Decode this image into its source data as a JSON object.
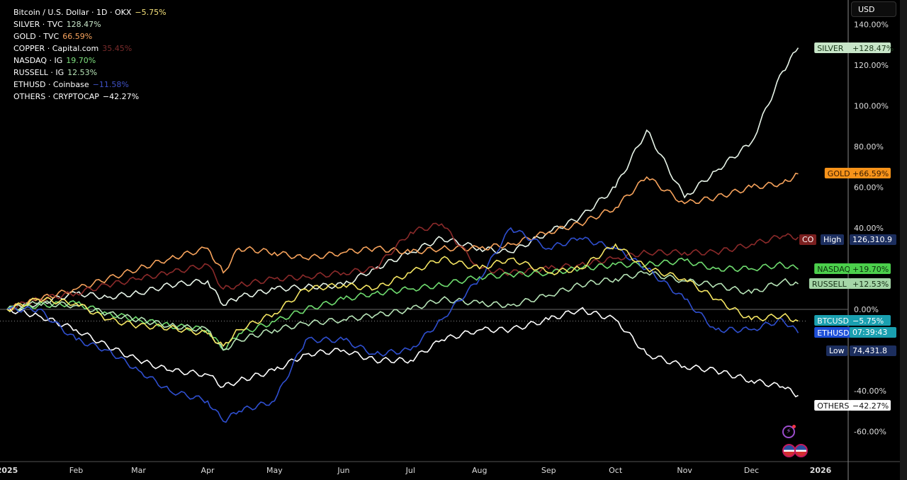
{
  "legend": [
    {
      "name": "Bitcoin / U.S. Dollar · 1D · OKX",
      "value": "−5.75%",
      "color": "#f5e17a"
    },
    {
      "name": "SILVER · TVC",
      "value": "128.47%",
      "color": "#c8e6c9"
    },
    {
      "name": "GOLD · TVC",
      "value": "66.59%",
      "color": "#f7a35c"
    },
    {
      "name": "COPPER · Capital.com",
      "value": "35.45%",
      "color": "#7a2b2b"
    },
    {
      "name": "NASDAQ · IG",
      "value": "19.70%",
      "color": "#7ee07e"
    },
    {
      "name": "RUSSELL · IG",
      "value": "12.53%",
      "color": "#b6e3b6"
    },
    {
      "name": "ETHUSD · Coinbase",
      "value": "−11.58%",
      "color": "#3f51c5"
    },
    {
      "name": "OTHERS · CRYPTOCAP",
      "value": "−42.27%",
      "color": "#ffffff"
    }
  ],
  "currency_button": "USD",
  "price_labels": {
    "copper_short": "CO",
    "high_label": "High",
    "high_value": "126,310.9",
    "low_label": "Low",
    "low_value": "74,431.8",
    "countdown": "07:39:43"
  },
  "chart_data": {
    "type": "line",
    "ylabel": "",
    "xlabel": "",
    "yscale": "percent",
    "ylim": [
      -72,
      148
    ],
    "yticks": [
      "140.00%",
      "120.00%",
      "100.00%",
      "80.00%",
      "60.00%",
      "40.00%",
      "0.00%",
      "-40.00%",
      "-60.00%"
    ],
    "ytick_values": [
      140,
      120,
      100,
      80,
      60,
      40,
      0,
      -40,
      -60
    ],
    "xticks": [
      "2025",
      "Feb",
      "Mar",
      "Apr",
      "May",
      "Jun",
      "Jul",
      "Aug",
      "Sep",
      "Oct",
      "Nov",
      "Dec",
      "2026"
    ],
    "xtick_dates": [
      "2025-01-01",
      "2025-02-01",
      "2025-03-01",
      "2025-04-01",
      "2025-05-01",
      "2025-06-01",
      "2025-07-01",
      "2025-08-01",
      "2025-09-01",
      "2025-10-01",
      "2025-11-01",
      "2025-12-01",
      "2026-01-01"
    ],
    "grid": false,
    "legend": "top-left",
    "x": [
      "2025-01-01",
      "2025-01-15",
      "2025-02-01",
      "2025-02-15",
      "2025-03-01",
      "2025-03-15",
      "2025-04-01",
      "2025-04-08",
      "2025-04-15",
      "2025-05-01",
      "2025-05-15",
      "2025-06-01",
      "2025-06-15",
      "2025-07-01",
      "2025-07-15",
      "2025-08-01",
      "2025-08-15",
      "2025-09-01",
      "2025-09-15",
      "2025-10-01",
      "2025-10-15",
      "2025-11-01",
      "2025-11-15",
      "2025-12-01",
      "2025-12-15",
      "2025-12-22"
    ],
    "series": [
      {
        "name": "SILVER",
        "tag": "+128.47%",
        "color": "#e8f5e9",
        "tagbg": "#c8e6c9",
        "tagfg": "#1b3a1b",
        "values": [
          0,
          3,
          8,
          6,
          8,
          12,
          14,
          2,
          6,
          10,
          11,
          12,
          20,
          28,
          35,
          30,
          28,
          38,
          45,
          60,
          88,
          55,
          68,
          82,
          117,
          128.47
        ]
      },
      {
        "name": "GOLD",
        "tag": "+66.59%",
        "color": "#f7a35c",
        "tagbg": "#f7931a",
        "tagfg": "#3a1c00",
        "values": [
          0,
          5,
          10,
          15,
          20,
          25,
          30,
          18,
          30,
          28,
          25,
          28,
          30,
          28,
          30,
          30,
          32,
          38,
          42,
          50,
          65,
          52,
          55,
          60,
          62,
          66.59
        ]
      },
      {
        "name": "COPPER",
        "tag": "",
        "color": "#8b2a2a",
        "tagbg": "#7a1f1f",
        "tagfg": "#fff",
        "values": [
          0,
          5,
          8,
          12,
          15,
          18,
          22,
          10,
          12,
          15,
          16,
          18,
          20,
          38,
          42,
          20,
          18,
          20,
          22,
          25,
          28,
          28,
          28,
          32,
          36,
          35.45
        ]
      },
      {
        "name": "NASDAQ",
        "tag": "+19.70%",
        "color": "#6fdc6f",
        "tagbg": "#4cd04c",
        "tagfg": "#0c300c",
        "values": [
          0,
          2,
          3,
          -2,
          -5,
          -8,
          -10,
          -20,
          -12,
          -6,
          0,
          5,
          8,
          10,
          12,
          16,
          17,
          18,
          20,
          22,
          22,
          24,
          20,
          20,
          22,
          19.7
        ]
      },
      {
        "name": "RUSSELL",
        "tag": "+12.53%",
        "color": "#b6e3b6",
        "tagbg": "#a5d6a7",
        "tagfg": "#163016",
        "values": [
          0,
          3,
          2,
          -2,
          -5,
          -8,
          -10,
          -20,
          -15,
          -10,
          -7,
          -5,
          -3,
          0,
          5,
          3,
          2,
          7,
          12,
          15,
          18,
          14,
          12,
          8,
          14,
          12.53
        ]
      },
      {
        "name": "OTHERS",
        "tag": "−42.27%",
        "color": "#ffffff",
        "tagbg": "#ffffff",
        "tagfg": "#111",
        "values": [
          0,
          -3,
          -10,
          -18,
          -25,
          -30,
          -32,
          -38,
          -35,
          -30,
          -22,
          -20,
          -25,
          -25,
          -15,
          -10,
          -10,
          -5,
          0,
          -5,
          -22,
          -28,
          -30,
          -35,
          -38,
          -42.27
        ]
      },
      {
        "name": "ETHUSD",
        "tag": "",
        "color": "#2f4fd0",
        "tagbg": "#1e4fd8",
        "tagfg": "#fff",
        "values": [
          0,
          0,
          -15,
          -20,
          -30,
          -40,
          -45,
          -55,
          -50,
          -45,
          -15,
          -15,
          -22,
          -20,
          -5,
          15,
          40,
          30,
          35,
          30,
          20,
          5,
          -10,
          -10,
          -5,
          -11.58
        ]
      },
      {
        "name": "BTCUSD",
        "tag": "−5.75%",
        "color": "#f5e663",
        "tagbg": "#1aa0b0",
        "tagfg": "#fff",
        "values": [
          0,
          5,
          3,
          -5,
          -8,
          -9,
          -12,
          -18,
          -10,
          -2,
          10,
          12,
          10,
          18,
          25,
          20,
          25,
          18,
          20,
          32,
          20,
          15,
          5,
          -5,
          -3,
          -5.75
        ]
      }
    ]
  }
}
